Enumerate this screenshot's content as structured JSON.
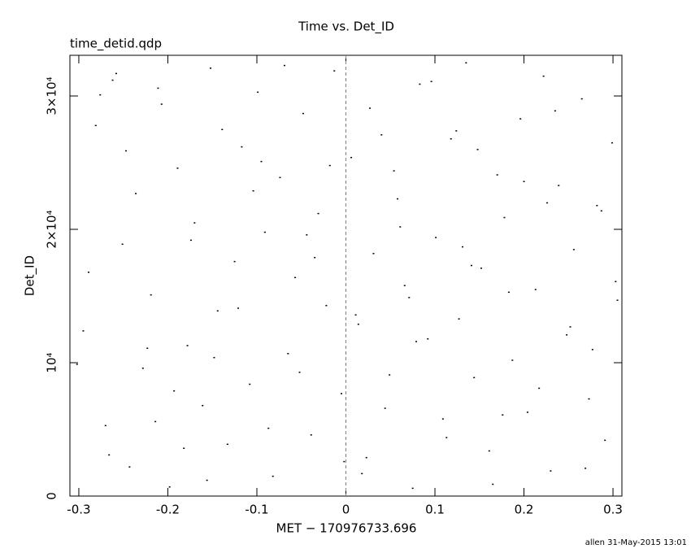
{
  "chart_data": {
    "type": "scatter",
    "title": "Time vs. Det_ID",
    "subtitle": "time_detid.qdp",
    "x_label": "MET − 170976733.696",
    "y_label": "Det_ID",
    "footer": "allen 31-May-2015 13:01",
    "xlim": [
      -0.31,
      0.31
    ],
    "ylim": [
      0,
      33050
    ],
    "xticks": [
      -0.3,
      -0.2,
      -0.1,
      0,
      0.1,
      0.2,
      0.3
    ],
    "yticks": [
      0,
      {
        "value": 10000,
        "label": "10⁴"
      },
      {
        "value": 20000,
        "label": "2×10⁴"
      },
      {
        "value": 30000,
        "label": "3×10⁴"
      }
    ],
    "color": "#000000",
    "reference_line": {
      "x": 0,
      "color": "#3a9bb0"
    },
    "x": [
      -0.295,
      -0.281,
      -0.27,
      -0.262,
      -0.251,
      -0.243,
      -0.236,
      -0.228,
      -0.219,
      -0.207,
      -0.198,
      -0.189,
      -0.178,
      -0.17,
      -0.161,
      -0.152,
      -0.144,
      -0.133,
      -0.125,
      -0.117,
      -0.108,
      -0.099,
      -0.091,
      -0.082,
      -0.074,
      -0.065,
      -0.057,
      -0.048,
      -0.039,
      -0.031,
      -0.022,
      -0.013,
      -0.005,
      0.006,
      0.014,
      0.023,
      0.031,
      0.04,
      0.049,
      0.058,
      0.066,
      0.075,
      0.083,
      0.092,
      0.101,
      0.109,
      0.118,
      0.127,
      0.135,
      0.144,
      0.152,
      0.161,
      0.17,
      0.178,
      0.187,
      0.196,
      0.204,
      0.213,
      0.222,
      0.23,
      0.239,
      0.248,
      0.256,
      0.265,
      0.273,
      0.282,
      0.291,
      0.299,
      0.305,
      -0.302,
      -0.289,
      -0.266,
      -0.247,
      -0.223,
      -0.211,
      -0.193,
      -0.174,
      -0.156,
      -0.139,
      -0.121,
      -0.104,
      -0.087,
      -0.069,
      -0.052,
      -0.035,
      -0.018,
      -0.002,
      0.011,
      0.027,
      0.044,
      0.061,
      0.079,
      0.096,
      0.113,
      0.131,
      0.148,
      0.165,
      0.183,
      0.2,
      0.217,
      0.235,
      0.252,
      0.269,
      0.287,
      0.303,
      -0.276,
      -0.214,
      -0.148,
      -0.095,
      -0.044,
      0.018,
      0.071,
      0.124,
      0.176,
      0.226,
      0.277,
      -0.258,
      -0.182,
      0.054,
      0.141
    ],
    "values": [
      12400,
      27800,
      5300,
      31200,
      18900,
      2200,
      22700,
      9600,
      15100,
      29400,
      700,
      24600,
      11300,
      20500,
      6800,
      32100,
      13900,
      3900,
      17600,
      26200,
      8400,
      30300,
      19800,
      1500,
      23900,
      10700,
      16400,
      28700,
      4600,
      21200,
      14300,
      31900,
      7700,
      25400,
      12900,
      2900,
      18200,
      27100,
      9100,
      22300,
      15800,
      600,
      30900,
      11800,
      19400,
      5800,
      26800,
      13300,
      32500,
      8900,
      17100,
      3400,
      24100,
      20900,
      10200,
      28300,
      6300,
      15500,
      31500,
      1900,
      23300,
      12100,
      18500,
      29800,
      7300,
      21800,
      4200,
      26500,
      14700,
      9900,
      16800,
      3100,
      25900,
      11100,
      30600,
      7900,
      19200,
      1200,
      27500,
      14100,
      22900,
      5100,
      32300,
      9300,
      17900,
      24800,
      2600,
      13600,
      29100,
      6600,
      20200,
      11600,
      31100,
      4400,
      18700,
      26000,
      900,
      15300,
      23600,
      8100,
      28900,
      12700,
      2100,
      21400,
      16100,
      30100,
      5600,
      10400,
      25100,
      19600,
      1700,
      14900,
      27400,
      6100,
      22000,
      11000,
      31700,
      3600,
      24400,
      17300
    ]
  }
}
